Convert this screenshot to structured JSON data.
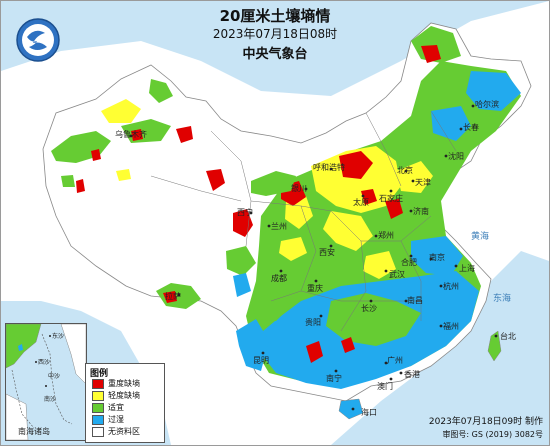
{
  "header": {
    "title": "20厘米土壤墒情",
    "datetime": "2023年07月18日08时",
    "publisher": "中央气象台"
  },
  "legend": {
    "title": "图例",
    "items": [
      {
        "label": "重度缺墒",
        "color": "#e00000"
      },
      {
        "label": "轻度缺墒",
        "color": "#ffff33"
      },
      {
        "label": "适宜",
        "color": "#66cc33"
      },
      {
        "label": "过湿",
        "color": "#22aaee"
      },
      {
        "label": "无资料区",
        "color": "#ffffff"
      }
    ]
  },
  "inset": {
    "label": "南海诸岛",
    "islands": [
      "东沙",
      "西沙",
      "中沙",
      "南沙"
    ]
  },
  "places": [
    {
      "name": "哈尔滨"
    },
    {
      "name": "长春"
    },
    {
      "name": "沈阳"
    },
    {
      "name": "北京"
    },
    {
      "name": "天津"
    },
    {
      "name": "呼和浩特"
    },
    {
      "name": "银川"
    },
    {
      "name": "太原"
    },
    {
      "name": "石家庄"
    },
    {
      "name": "济南"
    },
    {
      "name": "西宁"
    },
    {
      "name": "兰州"
    },
    {
      "name": "郑州"
    },
    {
      "name": "西安"
    },
    {
      "name": "合肥"
    },
    {
      "name": "南京"
    },
    {
      "name": "上海"
    },
    {
      "name": "成都"
    },
    {
      "name": "武汉"
    },
    {
      "name": "杭州"
    },
    {
      "name": "重庆"
    },
    {
      "name": "长沙"
    },
    {
      "name": "南昌"
    },
    {
      "name": "贵阳"
    },
    {
      "name": "福州"
    },
    {
      "name": "台北"
    },
    {
      "name": "昆明"
    },
    {
      "name": "南宁"
    },
    {
      "name": "广州"
    },
    {
      "name": "香港"
    },
    {
      "name": "澳门"
    },
    {
      "name": "海口"
    },
    {
      "name": "拉萨"
    },
    {
      "name": "乌鲁木齐"
    }
  ],
  "seas": [
    "黄海",
    "东海"
  ],
  "footer": {
    "made": "2023年07月18日09时 制作",
    "approval": "审图号: GS (2019) 3082号"
  },
  "colors": {
    "water": "#c8e4f5",
    "land_outside": "#ffffff",
    "border": "#888888"
  }
}
